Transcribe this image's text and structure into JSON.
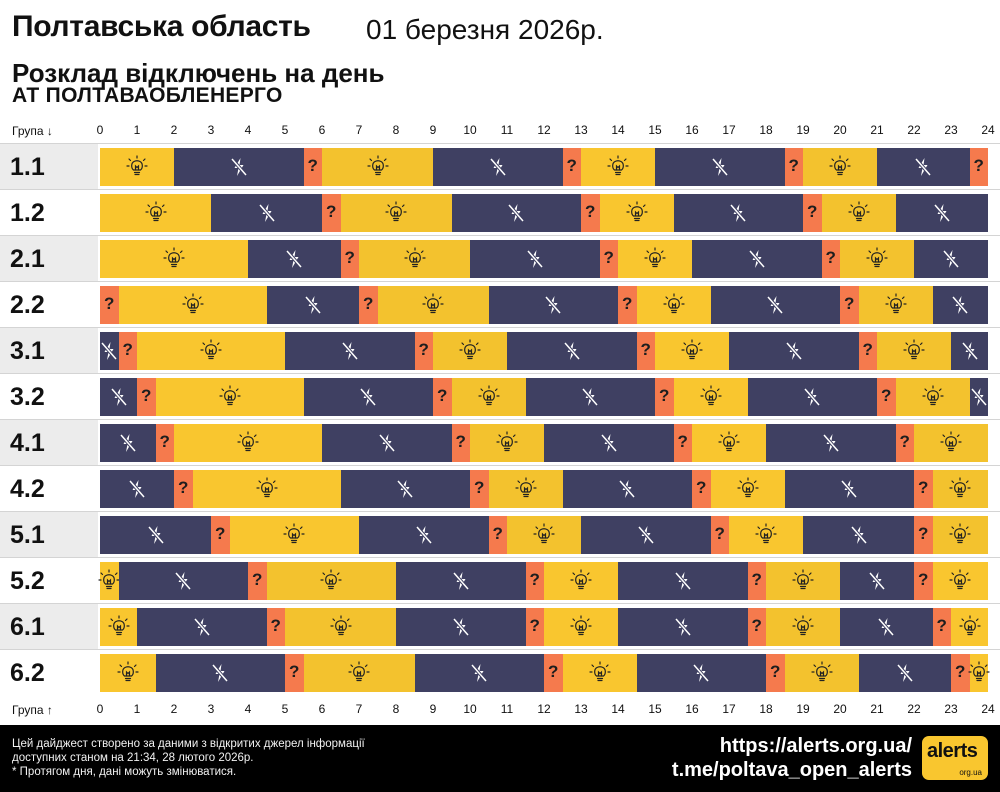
{
  "header": {
    "region": "Полтавська область",
    "date": "01 березня 2026р.",
    "subtitle": "Розклад відключень на день",
    "company": "АТ ПОЛТАВАОБЛЕНЕРГО"
  },
  "axis": {
    "top_label": "Група ↓",
    "bottom_label": "Група ↑",
    "hours": [
      "0",
      "1",
      "2",
      "3",
      "4",
      "5",
      "6",
      "7",
      "8",
      "9",
      "10",
      "11",
      "12",
      "13",
      "14",
      "15",
      "16",
      "17",
      "18",
      "19",
      "20",
      "21",
      "22",
      "23",
      "24"
    ]
  },
  "legend_icons": {
    "on": "lightbulb-icon",
    "off": "power-off-icon",
    "maybe": "?"
  },
  "colors": {
    "on": "#f9c62f",
    "off": "#3f4062",
    "maybe": "#f57a4d"
  },
  "groups": [
    {
      "name": "1.1",
      "segments": [
        {
          "start": 0,
          "end": 2,
          "state": "on"
        },
        {
          "start": 2,
          "end": 5.5,
          "state": "off"
        },
        {
          "start": 5.5,
          "end": 6,
          "state": "maybe"
        },
        {
          "start": 6,
          "end": 9,
          "state": "on"
        },
        {
          "start": 9,
          "end": 12.5,
          "state": "off"
        },
        {
          "start": 12.5,
          "end": 13,
          "state": "maybe"
        },
        {
          "start": 13,
          "end": 15,
          "state": "on"
        },
        {
          "start": 15,
          "end": 18.5,
          "state": "off"
        },
        {
          "start": 18.5,
          "end": 19,
          "state": "maybe"
        },
        {
          "start": 19,
          "end": 21,
          "state": "on"
        },
        {
          "start": 21,
          "end": 23.5,
          "state": "off"
        },
        {
          "start": 23.5,
          "end": 24,
          "state": "maybe"
        }
      ]
    },
    {
      "name": "1.2",
      "segments": [
        {
          "start": 0,
          "end": 3,
          "state": "on"
        },
        {
          "start": 3,
          "end": 6,
          "state": "off"
        },
        {
          "start": 6,
          "end": 6.5,
          "state": "maybe"
        },
        {
          "start": 6.5,
          "end": 9.5,
          "state": "on"
        },
        {
          "start": 9.5,
          "end": 13,
          "state": "off"
        },
        {
          "start": 13,
          "end": 13.5,
          "state": "maybe"
        },
        {
          "start": 13.5,
          "end": 15.5,
          "state": "on"
        },
        {
          "start": 15.5,
          "end": 19,
          "state": "off"
        },
        {
          "start": 19,
          "end": 19.5,
          "state": "maybe"
        },
        {
          "start": 19.5,
          "end": 21.5,
          "state": "on"
        },
        {
          "start": 21.5,
          "end": 24,
          "state": "off"
        }
      ]
    },
    {
      "name": "2.1",
      "segments": [
        {
          "start": 0,
          "end": 4,
          "state": "on"
        },
        {
          "start": 4,
          "end": 6.5,
          "state": "off"
        },
        {
          "start": 6.5,
          "end": 7,
          "state": "maybe"
        },
        {
          "start": 7,
          "end": 10,
          "state": "on"
        },
        {
          "start": 10,
          "end": 13.5,
          "state": "off"
        },
        {
          "start": 13.5,
          "end": 14,
          "state": "maybe"
        },
        {
          "start": 14,
          "end": 16,
          "state": "on"
        },
        {
          "start": 16,
          "end": 19.5,
          "state": "off"
        },
        {
          "start": 19.5,
          "end": 20,
          "state": "maybe"
        },
        {
          "start": 20,
          "end": 22,
          "state": "on"
        },
        {
          "start": 22,
          "end": 24,
          "state": "off"
        }
      ]
    },
    {
      "name": "2.2",
      "segments": [
        {
          "start": 0,
          "end": 0.5,
          "state": "maybe"
        },
        {
          "start": 0.5,
          "end": 4.5,
          "state": "on"
        },
        {
          "start": 4.5,
          "end": 7,
          "state": "off"
        },
        {
          "start": 7,
          "end": 7.5,
          "state": "maybe"
        },
        {
          "start": 7.5,
          "end": 10.5,
          "state": "on"
        },
        {
          "start": 10.5,
          "end": 14,
          "state": "off"
        },
        {
          "start": 14,
          "end": 14.5,
          "state": "maybe"
        },
        {
          "start": 14.5,
          "end": 16.5,
          "state": "on"
        },
        {
          "start": 16.5,
          "end": 20,
          "state": "off"
        },
        {
          "start": 20,
          "end": 20.5,
          "state": "maybe"
        },
        {
          "start": 20.5,
          "end": 22.5,
          "state": "on"
        },
        {
          "start": 22.5,
          "end": 24,
          "state": "off"
        }
      ]
    },
    {
      "name": "3.1",
      "segments": [
        {
          "start": 0,
          "end": 0.5,
          "state": "off"
        },
        {
          "start": 0.5,
          "end": 1,
          "state": "maybe"
        },
        {
          "start": 1,
          "end": 5,
          "state": "on"
        },
        {
          "start": 5,
          "end": 8.5,
          "state": "off"
        },
        {
          "start": 8.5,
          "end": 9,
          "state": "maybe"
        },
        {
          "start": 9,
          "end": 11,
          "state": "on"
        },
        {
          "start": 11,
          "end": 14.5,
          "state": "off"
        },
        {
          "start": 14.5,
          "end": 15,
          "state": "maybe"
        },
        {
          "start": 15,
          "end": 17,
          "state": "on"
        },
        {
          "start": 17,
          "end": 20.5,
          "state": "off"
        },
        {
          "start": 20.5,
          "end": 21,
          "state": "maybe"
        },
        {
          "start": 21,
          "end": 23,
          "state": "on"
        },
        {
          "start": 23,
          "end": 24,
          "state": "off"
        }
      ]
    },
    {
      "name": "3.2",
      "segments": [
        {
          "start": 0,
          "end": 1,
          "state": "off"
        },
        {
          "start": 1,
          "end": 1.5,
          "state": "maybe"
        },
        {
          "start": 1.5,
          "end": 5.5,
          "state": "on"
        },
        {
          "start": 5.5,
          "end": 9,
          "state": "off"
        },
        {
          "start": 9,
          "end": 9.5,
          "state": "maybe"
        },
        {
          "start": 9.5,
          "end": 11.5,
          "state": "on"
        },
        {
          "start": 11.5,
          "end": 15,
          "state": "off"
        },
        {
          "start": 15,
          "end": 15.5,
          "state": "maybe"
        },
        {
          "start": 15.5,
          "end": 17.5,
          "state": "on"
        },
        {
          "start": 17.5,
          "end": 21,
          "state": "off"
        },
        {
          "start": 21,
          "end": 21.5,
          "state": "maybe"
        },
        {
          "start": 21.5,
          "end": 23.5,
          "state": "on"
        },
        {
          "start": 23.5,
          "end": 24,
          "state": "off"
        }
      ]
    },
    {
      "name": "4.1",
      "segments": [
        {
          "start": 0,
          "end": 1.5,
          "state": "off"
        },
        {
          "start": 1.5,
          "end": 2,
          "state": "maybe"
        },
        {
          "start": 2,
          "end": 6,
          "state": "on"
        },
        {
          "start": 6,
          "end": 9.5,
          "state": "off"
        },
        {
          "start": 9.5,
          "end": 10,
          "state": "maybe"
        },
        {
          "start": 10,
          "end": 12,
          "state": "on"
        },
        {
          "start": 12,
          "end": 15.5,
          "state": "off"
        },
        {
          "start": 15.5,
          "end": 16,
          "state": "maybe"
        },
        {
          "start": 16,
          "end": 18,
          "state": "on"
        },
        {
          "start": 18,
          "end": 21.5,
          "state": "off"
        },
        {
          "start": 21.5,
          "end": 22,
          "state": "maybe"
        },
        {
          "start": 22,
          "end": 24,
          "state": "on"
        }
      ]
    },
    {
      "name": "4.2",
      "segments": [
        {
          "start": 0,
          "end": 2,
          "state": "off"
        },
        {
          "start": 2,
          "end": 2.5,
          "state": "maybe"
        },
        {
          "start": 2.5,
          "end": 6.5,
          "state": "on"
        },
        {
          "start": 6.5,
          "end": 10,
          "state": "off"
        },
        {
          "start": 10,
          "end": 10.5,
          "state": "maybe"
        },
        {
          "start": 10.5,
          "end": 12.5,
          "state": "on"
        },
        {
          "start": 12.5,
          "end": 16,
          "state": "off"
        },
        {
          "start": 16,
          "end": 16.5,
          "state": "maybe"
        },
        {
          "start": 16.5,
          "end": 18.5,
          "state": "on"
        },
        {
          "start": 18.5,
          "end": 22,
          "state": "off"
        },
        {
          "start": 22,
          "end": 22.5,
          "state": "maybe"
        },
        {
          "start": 22.5,
          "end": 24,
          "state": "on"
        }
      ]
    },
    {
      "name": "5.1",
      "segments": [
        {
          "start": 0,
          "end": 3,
          "state": "off"
        },
        {
          "start": 3,
          "end": 3.5,
          "state": "maybe"
        },
        {
          "start": 3.5,
          "end": 7,
          "state": "on"
        },
        {
          "start": 7,
          "end": 10.5,
          "state": "off"
        },
        {
          "start": 10.5,
          "end": 11,
          "state": "maybe"
        },
        {
          "start": 11,
          "end": 13,
          "state": "on"
        },
        {
          "start": 13,
          "end": 16.5,
          "state": "off"
        },
        {
          "start": 16.5,
          "end": 17,
          "state": "maybe"
        },
        {
          "start": 17,
          "end": 19,
          "state": "on"
        },
        {
          "start": 19,
          "end": 22,
          "state": "off"
        },
        {
          "start": 22,
          "end": 22.5,
          "state": "maybe"
        },
        {
          "start": 22.5,
          "end": 24,
          "state": "on"
        }
      ]
    },
    {
      "name": "5.2",
      "segments": [
        {
          "start": 0,
          "end": 0.5,
          "state": "on"
        },
        {
          "start": 0.5,
          "end": 4,
          "state": "off"
        },
        {
          "start": 4,
          "end": 4.5,
          "state": "maybe"
        },
        {
          "start": 4.5,
          "end": 8,
          "state": "on"
        },
        {
          "start": 8,
          "end": 11.5,
          "state": "off"
        },
        {
          "start": 11.5,
          "end": 12,
          "state": "maybe"
        },
        {
          "start": 12,
          "end": 14,
          "state": "on"
        },
        {
          "start": 14,
          "end": 17.5,
          "state": "off"
        },
        {
          "start": 17.5,
          "end": 18,
          "state": "maybe"
        },
        {
          "start": 18,
          "end": 20,
          "state": "on"
        },
        {
          "start": 20,
          "end": 22,
          "state": "off"
        },
        {
          "start": 22,
          "end": 22.5,
          "state": "maybe"
        },
        {
          "start": 22.5,
          "end": 24,
          "state": "on"
        }
      ]
    },
    {
      "name": "6.1",
      "segments": [
        {
          "start": 0,
          "end": 1,
          "state": "on"
        },
        {
          "start": 1,
          "end": 4.5,
          "state": "off"
        },
        {
          "start": 4.5,
          "end": 5,
          "state": "maybe"
        },
        {
          "start": 5,
          "end": 8,
          "state": "on"
        },
        {
          "start": 8,
          "end": 11.5,
          "state": "off"
        },
        {
          "start": 11.5,
          "end": 12,
          "state": "maybe"
        },
        {
          "start": 12,
          "end": 14,
          "state": "on"
        },
        {
          "start": 14,
          "end": 17.5,
          "state": "off"
        },
        {
          "start": 17.5,
          "end": 18,
          "state": "maybe"
        },
        {
          "start": 18,
          "end": 20,
          "state": "on"
        },
        {
          "start": 20,
          "end": 22.5,
          "state": "off"
        },
        {
          "start": 22.5,
          "end": 23,
          "state": "maybe"
        },
        {
          "start": 23,
          "end": 24,
          "state": "on"
        }
      ]
    },
    {
      "name": "6.2",
      "segments": [
        {
          "start": 0,
          "end": 1.5,
          "state": "on"
        },
        {
          "start": 1.5,
          "end": 5,
          "state": "off"
        },
        {
          "start": 5,
          "end": 5.5,
          "state": "maybe"
        },
        {
          "start": 5.5,
          "end": 8.5,
          "state": "on"
        },
        {
          "start": 8.5,
          "end": 12,
          "state": "off"
        },
        {
          "start": 12,
          "end": 12.5,
          "state": "maybe"
        },
        {
          "start": 12.5,
          "end": 14.5,
          "state": "on"
        },
        {
          "start": 14.5,
          "end": 18,
          "state": "off"
        },
        {
          "start": 18,
          "end": 18.5,
          "state": "maybe"
        },
        {
          "start": 18.5,
          "end": 20.5,
          "state": "on"
        },
        {
          "start": 20.5,
          "end": 23,
          "state": "off"
        },
        {
          "start": 23,
          "end": 23.5,
          "state": "maybe"
        },
        {
          "start": 23.5,
          "end": 24,
          "state": "on"
        }
      ]
    }
  ],
  "footer": {
    "note_line1": "Цей дайджест створено за даними з відкритих джерел інформації",
    "note_line2": "доступних станом на 21:34, 28 лютого 2026р.",
    "note_line3": "* Протягом дня, дані можуть змінюватися.",
    "link1": "https://alerts.org.ua/",
    "link2": "t.me/poltava_open_alerts",
    "logo_text": "alerts",
    "logo_sub": "org.ua"
  }
}
